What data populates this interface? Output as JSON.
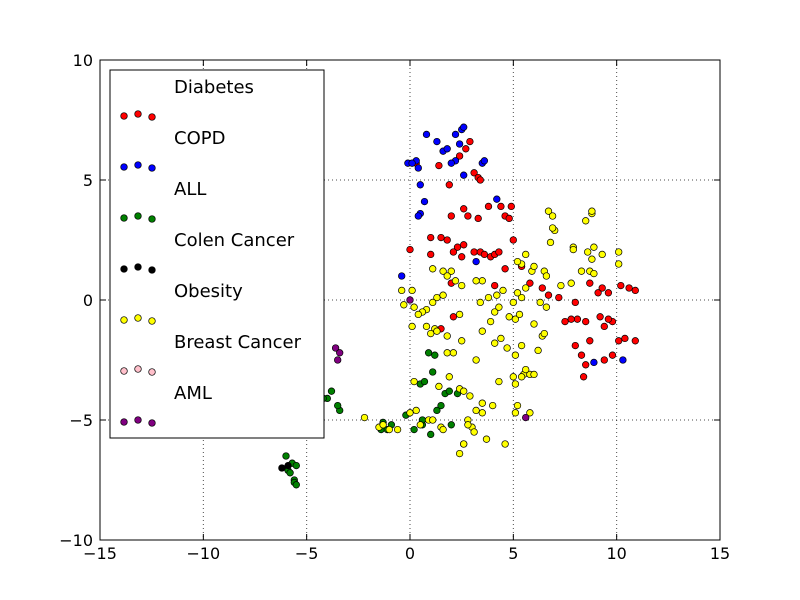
{
  "chart_data": {
    "type": "scatter",
    "title": "",
    "xlabel": "",
    "ylabel": "",
    "xlim": [
      -15,
      15
    ],
    "ylim": [
      -10,
      10
    ],
    "xticks": [
      "−15",
      "−10",
      "−5",
      "0",
      "5",
      "10",
      "15"
    ],
    "yticks": [
      "−10",
      "−5",
      "0",
      "5",
      "10"
    ],
    "grid": true,
    "legend_position": "upper-left",
    "series": [
      {
        "name": "Diabetes",
        "color": "#ff0000",
        "points": [
          [
            0.0,
            2.1
          ],
          [
            0.3,
            5.7
          ],
          [
            1.4,
            5.6
          ],
          [
            1.9,
            4.8
          ],
          [
            2.4,
            6.0
          ],
          [
            2.7,
            6.3
          ],
          [
            2.9,
            6.6
          ],
          [
            3.1,
            5.3
          ],
          [
            3.3,
            5.1
          ],
          [
            3.4,
            5.0
          ],
          [
            2.0,
            3.5
          ],
          [
            2.6,
            3.8
          ],
          [
            2.8,
            3.5
          ],
          [
            3.3,
            3.4
          ],
          [
            3.8,
            3.9
          ],
          [
            4.4,
            3.9
          ],
          [
            4.6,
            3.5
          ],
          [
            4.8,
            3.4
          ],
          [
            4.9,
            3.9
          ],
          [
            5.0,
            2.5
          ],
          [
            1.0,
            2.6
          ],
          [
            1.5,
            2.6
          ],
          [
            1.8,
            2.5
          ],
          [
            2.3,
            2.2
          ],
          [
            2.6,
            2.3
          ],
          [
            2.1,
            2.0
          ],
          [
            2.5,
            1.8
          ],
          [
            3.1,
            2.0
          ],
          [
            3.4,
            2.0
          ],
          [
            3.6,
            1.9
          ],
          [
            3.9,
            1.8
          ],
          [
            4.1,
            1.9
          ],
          [
            4.3,
            2.0
          ],
          [
            4.6,
            1.3
          ],
          [
            1.0,
            1.9
          ],
          [
            2.0,
            0.7
          ],
          [
            5.4,
            1.4
          ],
          [
            5.8,
            0.7
          ],
          [
            6.4,
            0.5
          ],
          [
            6.7,
            0.2
          ],
          [
            7.2,
            0.1
          ],
          [
            8.0,
            -0.1
          ],
          [
            8.7,
            0.7
          ],
          [
            9.1,
            0.3
          ],
          [
            9.3,
            0.5
          ],
          [
            9.6,
            0.3
          ],
          [
            10.2,
            0.6
          ],
          [
            10.6,
            0.5
          ],
          [
            10.9,
            0.4
          ],
          [
            10.4,
            -1.6
          ],
          [
            10.9,
            -1.7
          ],
          [
            10.1,
            -1.7
          ],
          [
            9.8,
            -2.3
          ],
          [
            9.4,
            -2.5
          ],
          [
            9.8,
            -0.9
          ],
          [
            9.4,
            -1.1
          ],
          [
            9.2,
            -0.7
          ],
          [
            9.6,
            -0.8
          ],
          [
            8.7,
            -1.7
          ],
          [
            8.0,
            -1.9
          ],
          [
            8.1,
            -0.8
          ],
          [
            7.8,
            -0.8
          ],
          [
            7.5,
            -0.9
          ],
          [
            8.5,
            -0.9
          ],
          [
            8.3,
            -2.3
          ],
          [
            8.5,
            -2.7
          ],
          [
            8.4,
            -3.2
          ],
          [
            1.5,
            -1.2
          ],
          [
            2.1,
            -0.7
          ],
          [
            4.1,
            0.6
          ]
        ]
      },
      {
        "name": "COPD",
        "color": "#0000ff",
        "points": [
          [
            0.8,
            6.9
          ],
          [
            1.3,
            6.6
          ],
          [
            1.6,
            6.2
          ],
          [
            1.8,
            6.3
          ],
          [
            2.2,
            5.8
          ],
          [
            2.4,
            6.5
          ],
          [
            2.5,
            7.1
          ],
          [
            2.6,
            7.2
          ],
          [
            2.2,
            6.9
          ],
          [
            2.0,
            5.7
          ],
          [
            3.5,
            5.7
          ],
          [
            3.6,
            5.8
          ],
          [
            2.6,
            5.2
          ],
          [
            0.3,
            5.8
          ],
          [
            -0.1,
            5.7
          ],
          [
            0.1,
            5.7
          ],
          [
            0.4,
            5.5
          ],
          [
            0.5,
            3.6
          ],
          [
            0.4,
            3.5
          ],
          [
            0.7,
            4.1
          ],
          [
            0.5,
            4.8
          ],
          [
            4.2,
            4.2
          ],
          [
            -0.4,
            1.0
          ],
          [
            8.9,
            -2.6
          ],
          [
            10.3,
            -2.5
          ],
          [
            3.2,
            1.6
          ]
        ]
      },
      {
        "name": "ALL",
        "color": "#008000",
        "points": [
          [
            -4.0,
            -4.1
          ],
          [
            -4.2,
            -4.1
          ],
          [
            -3.8,
            -3.8
          ],
          [
            -3.4,
            -4.6
          ],
          [
            -3.5,
            -4.4
          ],
          [
            -5.6,
            -5.6
          ],
          [
            -6.0,
            -6.5
          ],
          [
            -5.7,
            -6.8
          ],
          [
            -5.9,
            -7.1
          ],
          [
            -5.5,
            -6.9
          ],
          [
            -5.6,
            -7.5
          ],
          [
            -5.8,
            -7.2
          ],
          [
            -5.6,
            -7.6
          ],
          [
            -5.5,
            -7.7
          ],
          [
            -1.3,
            -5.1
          ],
          [
            -1.4,
            -5.4
          ],
          [
            -1.1,
            -5.4
          ],
          [
            -0.9,
            -5.2
          ],
          [
            -0.2,
            -4.8
          ],
          [
            0.6,
            -5.2
          ],
          [
            1.0,
            -5.6
          ],
          [
            1.3,
            -4.6
          ],
          [
            1.5,
            -4.4
          ],
          [
            1.7,
            -3.9
          ],
          [
            1.9,
            -3.8
          ],
          [
            2.3,
            -3.9
          ],
          [
            0.5,
            -3.5
          ],
          [
            0.7,
            -3.4
          ],
          [
            0.9,
            -2.2
          ],
          [
            1.2,
            -2.3
          ],
          [
            1.1,
            -3.0
          ],
          [
            0.6,
            -5.0
          ],
          [
            0.2,
            -5.4
          ],
          [
            2.0,
            -5.2
          ]
        ]
      },
      {
        "name": "Colen Cancer",
        "color": "#000000",
        "points": [
          [
            -6.2,
            -7.0
          ],
          [
            -5.9,
            -6.9
          ]
        ]
      },
      {
        "name": "Obesity",
        "color": "#ffff00",
        "points": [
          [
            -2.2,
            -4.9
          ],
          [
            -1.5,
            -5.3
          ],
          [
            -1.3,
            -5.2
          ],
          [
            -1.0,
            -5.4
          ],
          [
            -0.6,
            -5.4
          ],
          [
            0.0,
            -4.7
          ],
          [
            0.3,
            -4.6
          ],
          [
            0.5,
            -5.2
          ],
          [
            0.9,
            -5.0
          ],
          [
            1.1,
            -5.0
          ],
          [
            1.5,
            -5.3
          ],
          [
            1.6,
            -5.4
          ],
          [
            1.4,
            -3.6
          ],
          [
            1.8,
            -2.2
          ],
          [
            2.1,
            -2.2
          ],
          [
            2.5,
            -1.7
          ],
          [
            1.9,
            -3.2
          ],
          [
            2.4,
            -3.7
          ],
          [
            2.6,
            -3.8
          ],
          [
            2.8,
            -5.0
          ],
          [
            3.0,
            -5.3
          ],
          [
            3.1,
            -5.5
          ],
          [
            3.2,
            -4.6
          ],
          [
            3.5,
            -4.7
          ],
          [
            3.7,
            -5.8
          ],
          [
            2.8,
            -5.2
          ],
          [
            2.6,
            -6.0
          ],
          [
            2.4,
            -6.4
          ],
          [
            2.6,
            -6.0
          ],
          [
            4.6,
            -6.0
          ],
          [
            5.1,
            -3.5
          ],
          [
            5.2,
            -4.4
          ],
          [
            5.1,
            -4.7
          ],
          [
            5.5,
            -3.1
          ],
          [
            5.8,
            -3.1
          ],
          [
            5.6,
            -2.9
          ],
          [
            5.4,
            -3.2
          ],
          [
            5.0,
            -3.2
          ],
          [
            5.8,
            -4.7
          ],
          [
            6.0,
            -1.0
          ],
          [
            6.2,
            -2.1
          ],
          [
            6.0,
            -3.1
          ],
          [
            6.4,
            -1.5
          ],
          [
            6.5,
            -1.4
          ],
          [
            5.4,
            -1.9
          ],
          [
            5.1,
            -2.3
          ],
          [
            4.7,
            -2.0
          ],
          [
            4.4,
            -1.6
          ],
          [
            4.1,
            -1.8
          ],
          [
            3.5,
            -1.3
          ],
          [
            3.9,
            -0.9
          ],
          [
            4.1,
            -0.5
          ],
          [
            4.3,
            -0.3
          ],
          [
            3.4,
            -0.1
          ],
          [
            3.8,
            0.1
          ],
          [
            4.2,
            0.2
          ],
          [
            4.5,
            0.4
          ],
          [
            3.5,
            0.8
          ],
          [
            4.8,
            -0.7
          ],
          [
            5.1,
            -0.8
          ],
          [
            5.3,
            -0.6
          ],
          [
            5.0,
            -0.1
          ],
          [
            5.4,
            0.1
          ],
          [
            5.2,
            0.3
          ],
          [
            5.6,
            0.5
          ],
          [
            5.9,
            1.2
          ],
          [
            6.0,
            1.4
          ],
          [
            6.5,
            1.2
          ],
          [
            6.6,
            1.0
          ],
          [
            5.4,
            1.5
          ],
          [
            5.2,
            1.6
          ],
          [
            5.6,
            1.9
          ],
          [
            6.8,
            2.4
          ],
          [
            7.0,
            2.9
          ],
          [
            6.9,
            3.0
          ],
          [
            6.7,
            3.7
          ],
          [
            6.9,
            3.5
          ],
          [
            8.5,
            3.3
          ],
          [
            8.8,
            3.6
          ],
          [
            8.8,
            3.7
          ],
          [
            7.9,
            2.2
          ],
          [
            7.9,
            2.1
          ],
          [
            8.6,
            2.0
          ],
          [
            8.9,
            2.2
          ],
          [
            9.3,
            1.9
          ],
          [
            10.1,
            2.0
          ],
          [
            10.1,
            1.5
          ],
          [
            8.7,
            1.2
          ],
          [
            8.9,
            1.1
          ],
          [
            8.3,
            1.2
          ],
          [
            8.8,
            1.7
          ],
          [
            7.3,
            0.6
          ],
          [
            7.8,
            0.7
          ],
          [
            6.3,
            -0.1
          ],
          [
            6.6,
            -0.3
          ],
          [
            1.1,
            1.3
          ],
          [
            1.6,
            1.2
          ],
          [
            2.0,
            1.2
          ],
          [
            1.8,
            1.0
          ],
          [
            2.2,
            0.8
          ],
          [
            2.5,
            0.6
          ],
          [
            3.2,
            0.8
          ],
          [
            1.3,
            0.1
          ],
          [
            1.1,
            -0.1
          ],
          [
            1.6,
            0.2
          ],
          [
            0.8,
            -0.4
          ],
          [
            0.6,
            -0.5
          ],
          [
            2.4,
            -0.6
          ],
          [
            1.2,
            -1.2
          ],
          [
            0.8,
            -1.1
          ],
          [
            1.0,
            -1.4
          ],
          [
            1.3,
            -1.3
          ],
          [
            1.8,
            -1.5
          ],
          [
            0.1,
            -1.1
          ],
          [
            -0.3,
            -0.2
          ],
          [
            -0.4,
            0.4
          ],
          [
            0.1,
            0.4
          ],
          [
            0.2,
            -0.3
          ],
          [
            0.4,
            -0.6
          ],
          [
            0.2,
            -3.4
          ],
          [
            2.9,
            -4.0
          ],
          [
            3.5,
            -4.3
          ],
          [
            4.0,
            -4.4
          ],
          [
            4.3,
            -3.4
          ],
          [
            3.2,
            -2.5
          ]
        ]
      },
      {
        "name": "Breast Cancer",
        "color": "#ffc0cb",
        "points": []
      },
      {
        "name": "AML",
        "color": "#800080",
        "points": [
          [
            -3.6,
            -2.0
          ],
          [
            -3.4,
            -2.2
          ],
          [
            -3.5,
            -2.5
          ],
          [
            0.0,
            0.0
          ],
          [
            5.6,
            -4.9
          ]
        ]
      }
    ]
  }
}
